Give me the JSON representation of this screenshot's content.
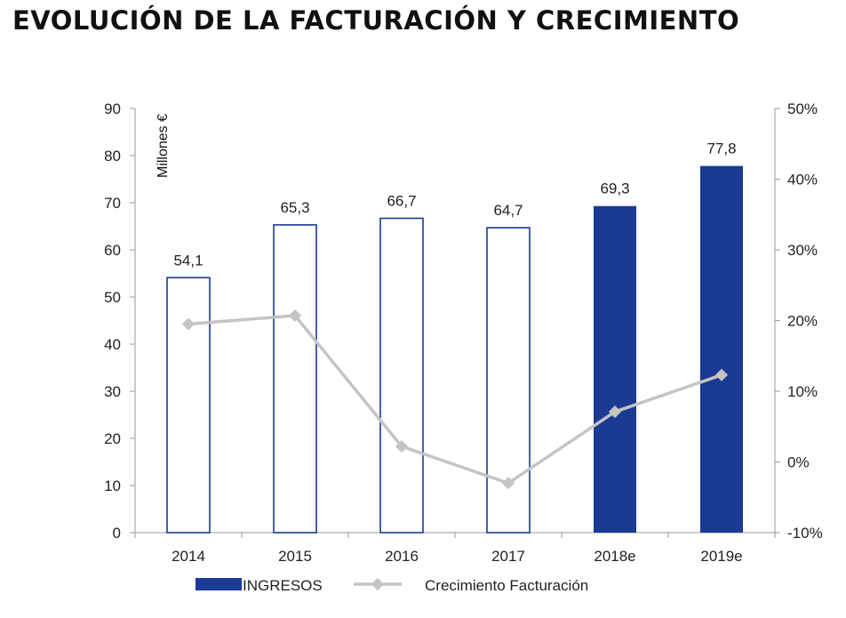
{
  "chart_data": {
    "type": "bar",
    "title": "EVOLUCIÓN DE LA FACTURACIÓN Y CRECIMIENTO",
    "ylabel": "Millones €",
    "ylim": [
      0,
      90
    ],
    "y_ticks": [
      "0",
      "10",
      "20",
      "30",
      "40",
      "50",
      "60",
      "70",
      "80",
      "90"
    ],
    "y2lim": [
      -10,
      50
    ],
    "y2_ticks": [
      "-10%",
      "0%",
      "10%",
      "20%",
      "30%",
      "40%",
      "50%"
    ],
    "categories": [
      "2014",
      "2015",
      "2016",
      "2017",
      "2018e",
      "2019e"
    ],
    "series": [
      {
        "name": "INGRESOS",
        "type": "bar",
        "axis": "left",
        "values": [
          54.1,
          65.3,
          66.7,
          64.7,
          69.3,
          77.8
        ],
        "value_labels": [
          "54,1",
          "65,3",
          "66,7",
          "64,7",
          "69,3",
          "77,8"
        ],
        "filled": [
          false,
          false,
          false,
          false,
          true,
          true
        ]
      },
      {
        "name": "Crecimiento Facturación",
        "type": "line",
        "axis": "right",
        "values": [
          19.5,
          20.7,
          2.2,
          -3.0,
          7.1,
          12.3
        ]
      }
    ],
    "legend": [
      "INGRESOS",
      "Crecimiento Facturación"
    ],
    "legend_position": "bottom",
    "grid": false
  },
  "colors": {
    "bar": "#1a3a93",
    "line": "#c4c4c4",
    "axis": "#9a9a9a"
  }
}
